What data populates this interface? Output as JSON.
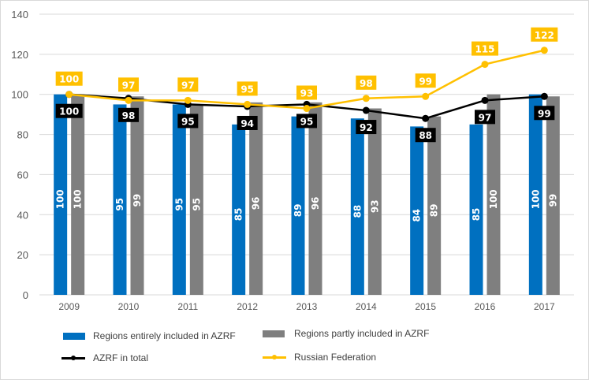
{
  "chart_data": {
    "type": "bar",
    "title": "",
    "xlabel": "",
    "ylabel": "",
    "ylim": [
      0,
      140
    ],
    "yticks": [
      0,
      20,
      40,
      60,
      80,
      100,
      120,
      140
    ],
    "grid": true,
    "legend_position": "bottom",
    "categories": [
      "2009",
      "2010",
      "2011",
      "2012",
      "2013",
      "2014",
      "2015",
      "2016",
      "2017"
    ],
    "series": [
      {
        "name": "Regions entirely included in AZRF",
        "kind": "bar",
        "color": "#0070c0",
        "values": [
          100,
          95,
          95,
          85,
          89,
          88,
          84,
          85,
          100
        ]
      },
      {
        "name": "Regions partly included in AZRF",
        "kind": "bar",
        "color": "#7f7f7f",
        "values": [
          100,
          99,
          95,
          96,
          96,
          93,
          89,
          100,
          99
        ]
      },
      {
        "name": "AZRF in total",
        "kind": "line",
        "color": "#000000",
        "values": [
          100,
          98,
          95,
          94,
          95,
          92,
          88,
          97,
          99
        ]
      },
      {
        "name": "Russian Federation",
        "kind": "line",
        "color": "#ffc000",
        "values": [
          100,
          97,
          97,
          95,
          93,
          98,
          99,
          115,
          122
        ]
      }
    ]
  }
}
